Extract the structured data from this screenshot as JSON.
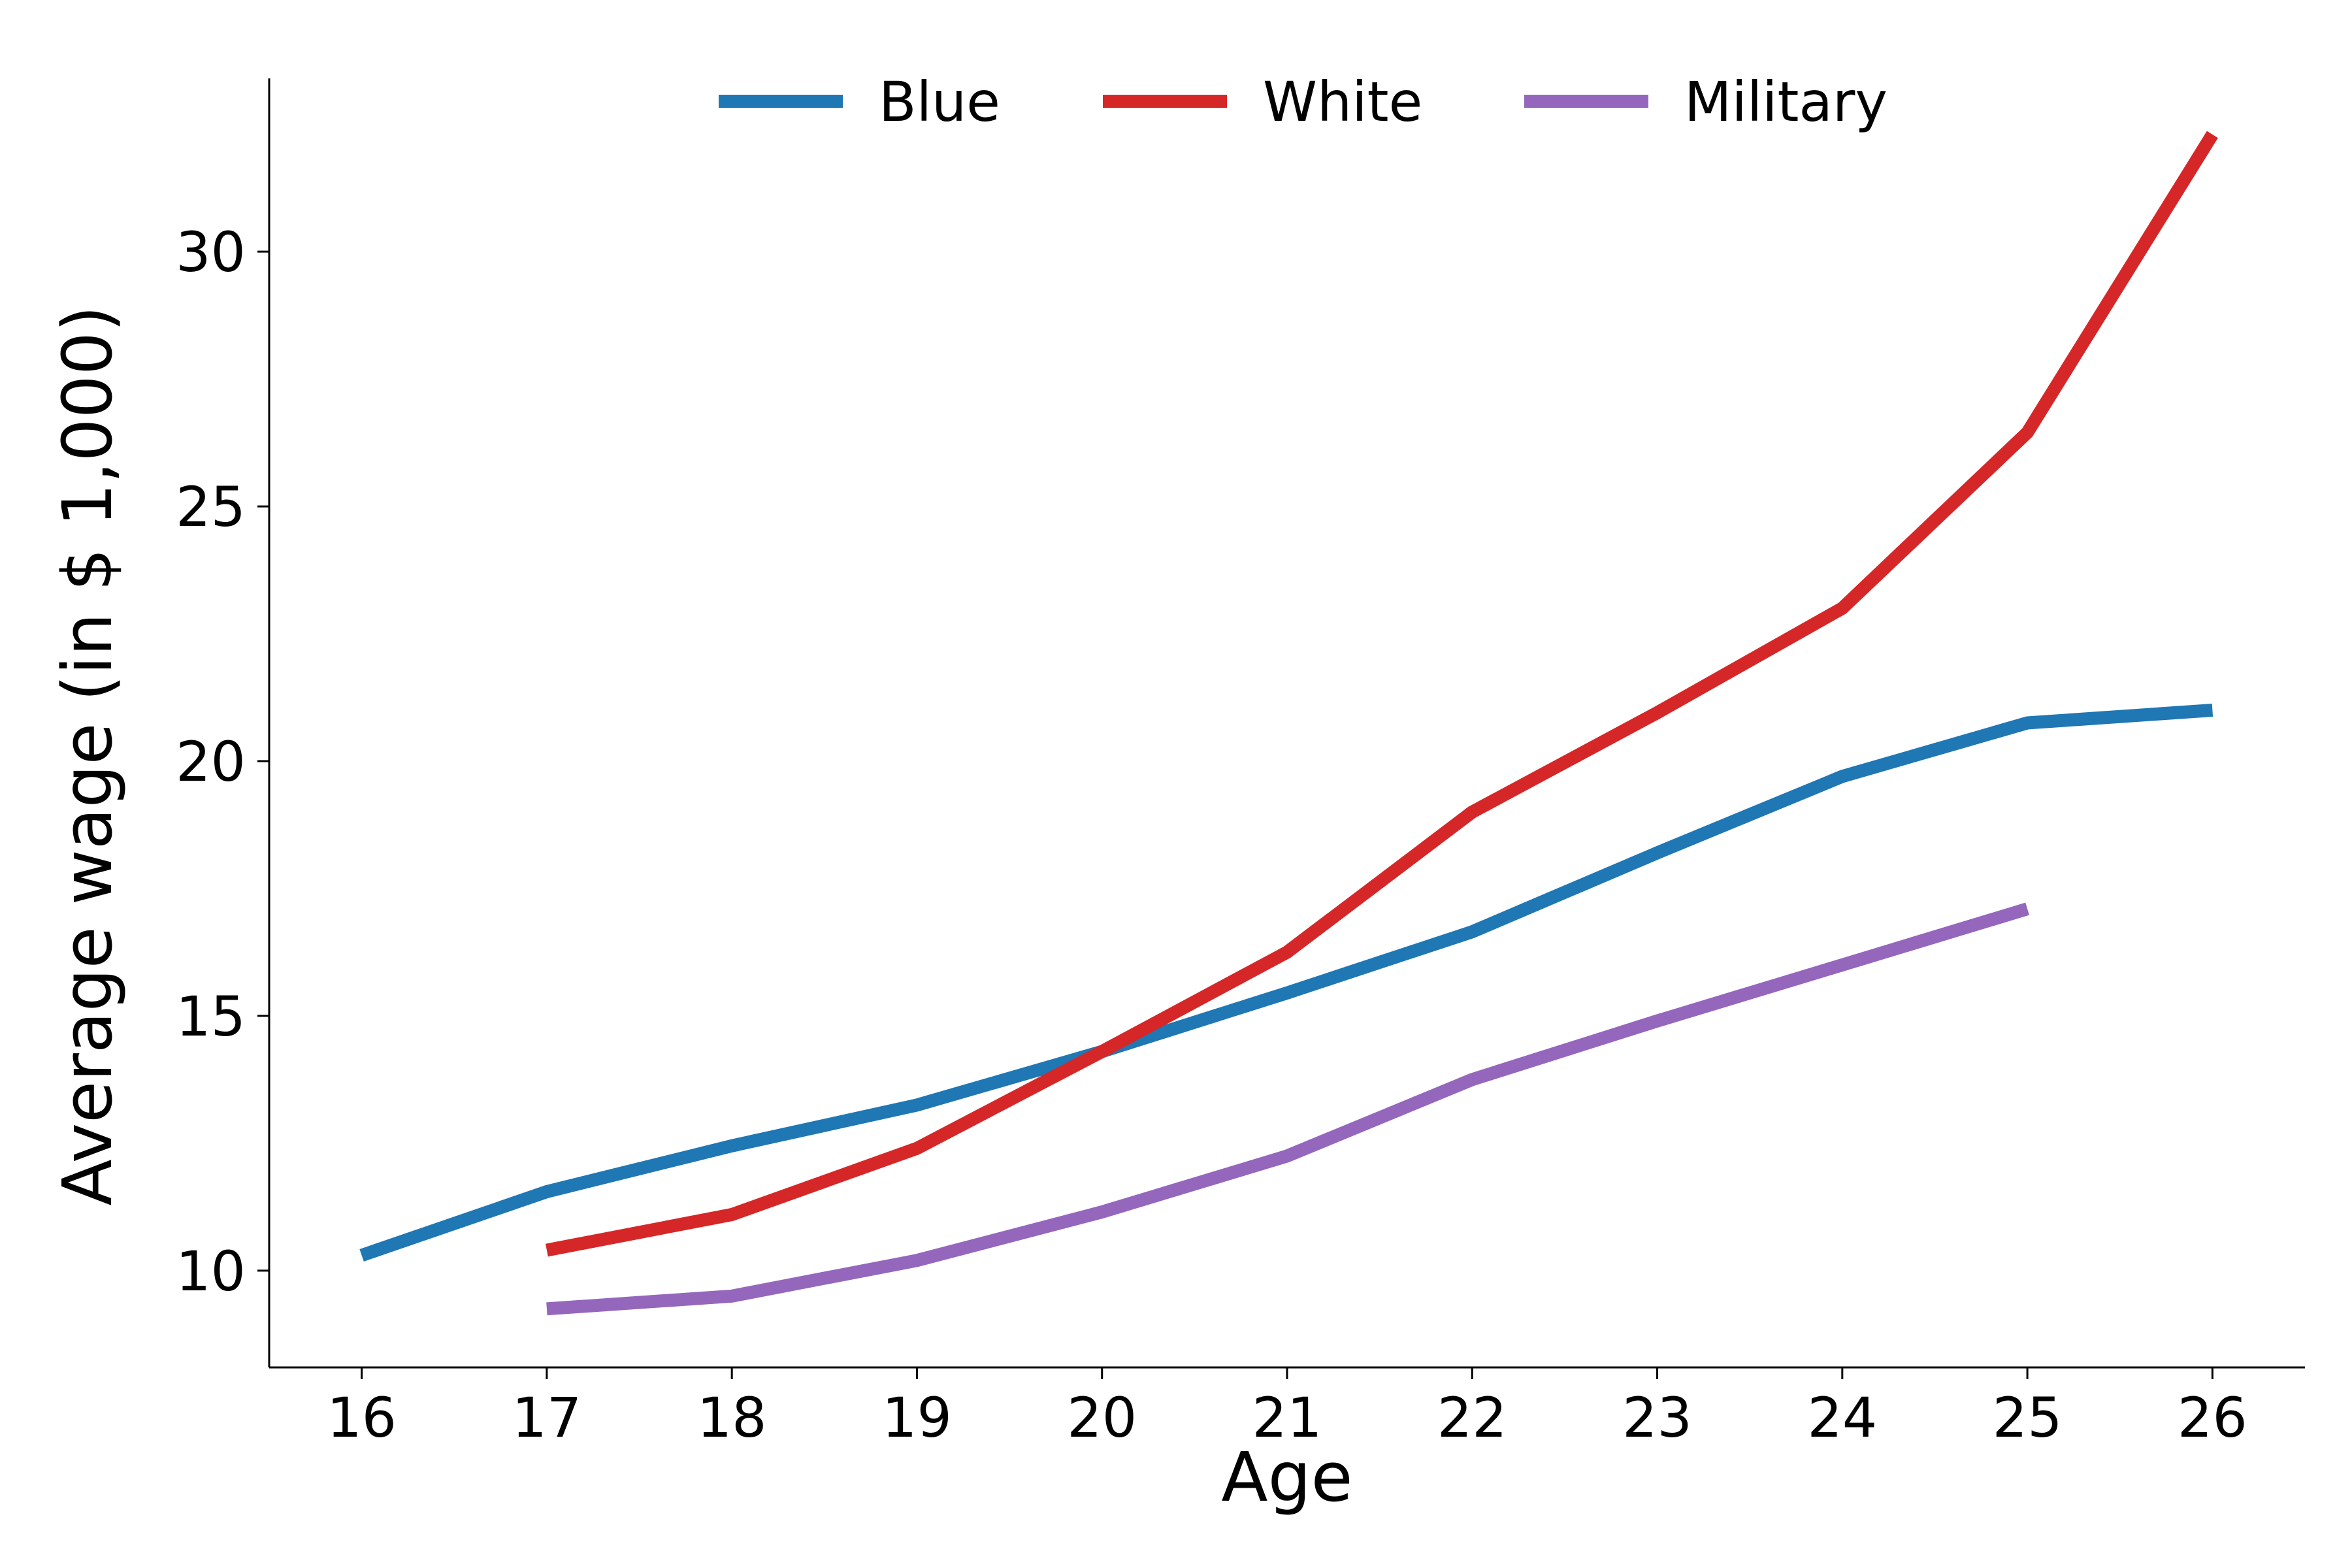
{
  "chart_data": {
    "type": "line",
    "title": "",
    "xlabel": "Age",
    "ylabel": "Average wage (in $ 1,000)",
    "xlim": [
      15.5,
      26.5
    ],
    "ylim": [
      8.1,
      33.4
    ],
    "xticks": [
      16,
      17,
      18,
      19,
      20,
      21,
      22,
      23,
      24,
      25,
      26
    ],
    "xtick_labels": [
      "16",
      "17",
      "18",
      "19",
      "20",
      "21",
      "22",
      "23",
      "24",
      "25",
      "26"
    ],
    "yticks": [
      10,
      15,
      20,
      25,
      30
    ],
    "ytick_labels": [
      "10",
      "15",
      "20",
      "25",
      "30"
    ],
    "grid": false,
    "legend": {
      "position": "top-center",
      "frame": false
    },
    "series": [
      {
        "name": "Blue",
        "color": "#1f77b4",
        "x": [
          16,
          17,
          18,
          19,
          20,
          21,
          22,
          23,
          24,
          25,
          26
        ],
        "y": [
          10.3,
          11.55,
          12.45,
          13.25,
          14.3,
          15.45,
          16.65,
          18.2,
          19.7,
          20.75,
          21.0
        ]
      },
      {
        "name": "White",
        "color": "#d62728",
        "x": [
          17,
          18,
          19,
          20,
          21,
          22,
          23,
          24,
          25,
          26
        ],
        "y": [
          10.4,
          11.1,
          12.4,
          14.3,
          16.25,
          19.0,
          20.95,
          23.0,
          26.45,
          32.3
        ]
      },
      {
        "name": "Military",
        "color": "#9467bd",
        "x": [
          17,
          18,
          19,
          20,
          21,
          22,
          23,
          24,
          25
        ],
        "y": [
          9.25,
          9.5,
          10.2,
          11.15,
          12.25,
          13.75,
          14.9,
          16.0,
          17.1
        ]
      }
    ]
  }
}
